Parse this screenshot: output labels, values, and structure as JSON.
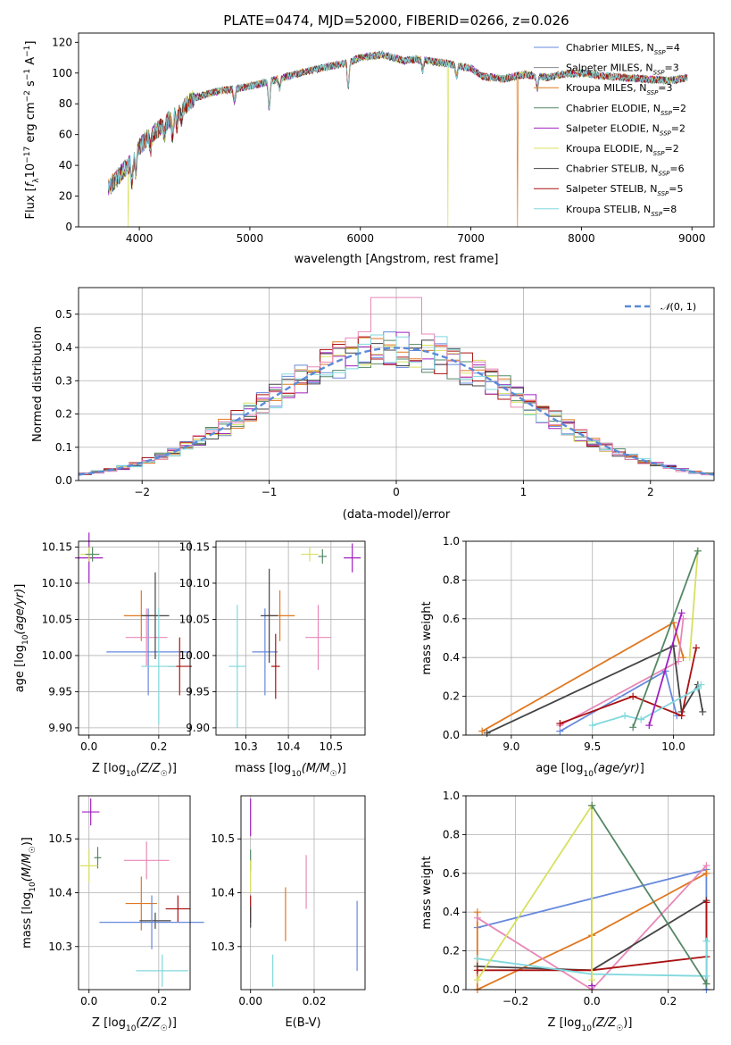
{
  "colors": {
    "chabrier_miles": "#6688dd",
    "salpeter_miles": "#888888",
    "kroupa_miles": "#e07820",
    "chabrier_elodie": "#558866",
    "salpeter_elodie": "#a020c0",
    "kroupa_elodie": "#d8e060",
    "chabrier_stelib": "#444444",
    "salpeter_stelib": "#aa1111",
    "kroupa_stelib": "#80d8dd",
    "pink": "#e888b8",
    "gaussian": "#5b8ad8"
  },
  "chart_data": [
    {
      "id": "spectrum",
      "type": "line",
      "title": "PLATE=0474, MJD=52000, FIBERID=0266, z=0.026",
      "xlabel": "wavelength [Angstrom, rest frame]",
      "ylabel": "Flux [fλ10⁻¹⁷ erg cm⁻² s⁻¹ A⁻¹]",
      "xlim": [
        3450,
        9200
      ],
      "ylim": [
        0,
        126
      ],
      "xticks": [
        4000,
        5000,
        6000,
        7000,
        8000,
        9000
      ],
      "yticks": [
        0,
        20,
        40,
        60,
        80,
        100,
        120
      ],
      "legend_position": "top-right",
      "legend": [
        "Chabrier MILES, N_SSP=4",
        "Salpeter MILES, N_SSP=3",
        "Kroupa MILES, N_SSP=3",
        "Chabrier ELODIE, N_SSP=2",
        "Salpeter ELODIE, N_SSP=2",
        "Kroupa ELODIE, N_SSP=2",
        "Chabrier STELIB, N_SSP=6",
        "Salpeter STELIB, N_SSP=5",
        "Kroupa STELIB, N_SSP=8"
      ],
      "legend_labels": [
        {
          "model": "Chabrier MILES, N",
          "n": "=4"
        },
        {
          "model": "Salpeter MILES, N",
          "n": "=3"
        },
        {
          "model": "Kroupa MILES, N",
          "n": "=3"
        },
        {
          "model": "Chabrier ELODIE, N",
          "n": "=2"
        },
        {
          "model": "Salpeter ELODIE, N",
          "n": "=2"
        },
        {
          "model": "Kroupa ELODIE, N",
          "n": "=2"
        },
        {
          "model": "Chabrier STELIB, N",
          "n": "=6"
        },
        {
          "model": "Salpeter STELIB, N",
          "n": "=5"
        },
        {
          "model": "Kroupa STELIB, N",
          "n": "=8"
        }
      ],
      "legend_subscript": "SSP",
      "continuum": {
        "x": [
          3720,
          3800,
          3900,
          4000,
          4100,
          4200,
          4300,
          4400,
          4500,
          4700,
          4900,
          5100,
          5300,
          5500,
          5700,
          5900,
          6000,
          6100,
          6200,
          6300,
          6400,
          6500,
          6600,
          6800,
          7000,
          7100,
          7200,
          7300,
          7400,
          7500,
          7600,
          7700,
          7800,
          8000,
          8200,
          8400,
          8600,
          8800,
          8960
        ],
        "y": [
          25,
          32,
          40,
          52,
          60,
          65,
          72,
          78,
          84,
          88,
          90,
          93,
          97,
          101,
          104,
          107,
          110,
          111,
          112,
          110,
          108,
          109,
          108,
          106,
          103,
          98,
          97,
          96,
          98,
          99,
          98,
          97,
          99,
          100,
          98,
          97,
          96,
          95,
          97
        ]
      },
      "dropouts": [
        {
          "series": "kroupa_elodie",
          "x": 3900
        },
        {
          "series": "kroupa_elodie",
          "x": 6790
        },
        {
          "series": "kroupa_miles",
          "x": 7420
        }
      ]
    },
    {
      "id": "residuals",
      "type": "histogram",
      "xlabel": "(data-model)/error",
      "ylabel": "Normed distribution",
      "xlim": [
        -2.5,
        2.5
      ],
      "ylim": [
        0,
        0.58
      ],
      "xticks": [
        -2,
        -1,
        0,
        1,
        2
      ],
      "yticks": [
        0.0,
        0.1,
        0.2,
        0.3,
        0.4,
        0.5
      ],
      "legend": [
        "N(0,1)"
      ],
      "legend_position": "top-right",
      "bins": 50
    },
    {
      "id": "age_vs_Z",
      "type": "scatter",
      "xlabel": "Z [log10(Z/Z☉)]",
      "ylabel": "age  [log10(age/yr)]",
      "xlim": [
        -0.03,
        0.29
      ],
      "ylim": [
        9.89,
        10.158
      ],
      "xticks": [
        0.0,
        0.2
      ],
      "yticks": [
        9.9,
        9.95,
        10.0,
        10.05,
        10.1,
        10.15
      ],
      "points": [
        {
          "series": "chabrier_miles",
          "x": 0.17,
          "y": 10.005,
          "xerr": 0.12,
          "yerr": 0.06
        },
        {
          "series": "kroupa_miles",
          "x": 0.15,
          "y": 10.055,
          "xerr": 0.05,
          "yerr": 0.035
        },
        {
          "series": "pink",
          "x": 0.165,
          "y": 10.025,
          "xerr": 0.06,
          "yerr": 0.04
        },
        {
          "series": "chabrier_stelib",
          "x": 0.19,
          "y": 10.055,
          "xerr": 0.04,
          "yerr": 0.06
        },
        {
          "series": "salpeter_stelib",
          "x": 0.26,
          "y": 9.985,
          "xerr": 0.035,
          "yerr": 0.04
        },
        {
          "series": "kroupa_stelib",
          "x": 0.2,
          "y": 9.985,
          "xerr": 0.05,
          "yerr": 0.08
        },
        {
          "series": "salpeter_elodie",
          "x": 0.0,
          "y": 10.135,
          "xerr": 0.04,
          "yerr": 0.035
        },
        {
          "series": "kroupa_elodie",
          "x": 0.0,
          "y": 10.14,
          "xerr": 0.025,
          "yerr": 0.01
        },
        {
          "series": "chabrier_elodie",
          "x": 0.01,
          "y": 10.14,
          "xerr": 0.02,
          "yerr": 0.01
        }
      ]
    },
    {
      "id": "age_vs_mass",
      "type": "scatter",
      "xlabel": "mass [log10(M/M☉)]",
      "xlim": [
        10.23,
        10.58
      ],
      "ylim": [
        9.89,
        10.158
      ],
      "xticks": [
        10.3,
        10.4,
        10.5
      ],
      "yticks": [
        9.9,
        9.95,
        10.0,
        10.05,
        10.1,
        10.15
      ],
      "points": [
        {
          "series": "chabrier_miles",
          "x": 10.345,
          "y": 10.005,
          "xerr": 0.03,
          "yerr": 0.06
        },
        {
          "series": "kroupa_miles",
          "x": 10.38,
          "y": 10.055,
          "xerr": 0.035,
          "yerr": 0.035
        },
        {
          "series": "chabrier_stelib",
          "x": 10.355,
          "y": 10.055,
          "xerr": 0.02,
          "yerr": 0.065
        },
        {
          "series": "salpeter_stelib",
          "x": 10.37,
          "y": 9.985,
          "xerr": 0.01,
          "yerr": 0.045
        },
        {
          "series": "pink",
          "x": 10.47,
          "y": 10.025,
          "xerr": 0.03,
          "yerr": 0.045
        },
        {
          "series": "kroupa_stelib",
          "x": 10.28,
          "y": 9.985,
          "xerr": 0.02,
          "yerr": 0.085
        },
        {
          "series": "salpeter_elodie",
          "x": 10.55,
          "y": 10.135,
          "xerr": 0.02,
          "yerr": 0.02
        },
        {
          "series": "kroupa_elodie",
          "x": 10.45,
          "y": 10.14,
          "xerr": 0.02,
          "yerr": 0.01
        },
        {
          "series": "chabrier_elodie",
          "x": 10.48,
          "y": 10.137,
          "xerr": 0.01,
          "yerr": 0.01
        }
      ]
    },
    {
      "id": "weight_vs_age",
      "type": "line",
      "xlabel": "age  [log10(age/yr)]",
      "ylabel": "mass weight",
      "xlim": [
        8.72,
        10.25
      ],
      "ylim": [
        0,
        1.0
      ],
      "xticks": [
        9.0,
        9.5,
        10.0
      ],
      "yticks": [
        0.0,
        0.2,
        0.4,
        0.6,
        0.8,
        1.0
      ],
      "series": [
        {
          "series": "chabrier_miles",
          "x": [
            9.3,
            9.95,
            10.02
          ],
          "y": [
            0.02,
            0.33,
            0.1
          ]
        },
        {
          "series": "kroupa_miles",
          "x": [
            8.82,
            10.0,
            10.06
          ],
          "y": [
            0.02,
            0.58,
            0.4
          ]
        },
        {
          "series": "pink",
          "x": [
            9.3,
            10.03,
            10.06
          ],
          "y": [
            0.05,
            0.38,
            0.6
          ]
        },
        {
          "series": "chabrier_stelib",
          "x": [
            8.85,
            10.0,
            10.05,
            10.15,
            10.18
          ],
          "y": [
            0.01,
            0.46,
            0.12,
            0.26,
            0.12
          ]
        },
        {
          "series": "salpeter_stelib",
          "x": [
            9.3,
            9.75,
            10.05,
            10.14
          ],
          "y": [
            0.06,
            0.2,
            0.1,
            0.45
          ]
        },
        {
          "series": "kroupa_stelib",
          "x": [
            9.5,
            9.7,
            9.8,
            10.15,
            10.17
          ],
          "y": [
            0.05,
            0.1,
            0.08,
            0.24,
            0.26
          ]
        },
        {
          "series": "salpeter_elodie",
          "x": [
            9.85,
            10.05
          ],
          "y": [
            0.05,
            0.63
          ]
        },
        {
          "series": "kroupa_elodie",
          "x": [
            10.1,
            10.15
          ],
          "y": [
            0.4,
            0.95
          ]
        },
        {
          "series": "chabrier_elodie",
          "x": [
            9.75,
            10.15
          ],
          "y": [
            0.04,
            0.95
          ]
        }
      ]
    },
    {
      "id": "mass_vs_Z",
      "type": "scatter",
      "xlabel": "Z [log10(Z/Z☉)]",
      "ylabel": "mass [log10(M/M☉)]",
      "xlim": [
        -0.03,
        0.29
      ],
      "ylim": [
        10.22,
        10.58
      ],
      "xticks": [
        0.0,
        0.2
      ],
      "yticks": [
        10.3,
        10.4,
        10.5
      ],
      "points": [
        {
          "series": "salpeter_elodie",
          "x": 0.005,
          "y": 10.55,
          "xerr": 0.025,
          "yerr": 0.025
        },
        {
          "series": "chabrier_elodie",
          "x": 0.025,
          "y": 10.465,
          "xerr": 0.01,
          "yerr": 0.02
        },
        {
          "series": "kroupa_elodie",
          "x": 0.0,
          "y": 10.45,
          "xerr": 0.025,
          "yerr": 0.03
        },
        {
          "series": "pink",
          "x": 0.165,
          "y": 10.46,
          "xerr": 0.065,
          "yerr": 0.035
        },
        {
          "series": "kroupa_miles",
          "x": 0.15,
          "y": 10.38,
          "xerr": 0.045,
          "yerr": 0.05
        },
        {
          "series": "salpeter_stelib",
          "x": 0.255,
          "y": 10.37,
          "xerr": 0.035,
          "yerr": 0.025
        },
        {
          "series": "chabrier_stelib",
          "x": 0.19,
          "y": 10.348,
          "xerr": 0.045,
          "yerr": 0.015
        },
        {
          "series": "chabrier_miles",
          "x": 0.18,
          "y": 10.345,
          "xerr": 0.15,
          "yerr": 0.05
        },
        {
          "series": "kroupa_stelib",
          "x": 0.21,
          "y": 10.255,
          "xerr": 0.075,
          "yerr": 0.03
        }
      ]
    },
    {
      "id": "mass_vs_ebv",
      "type": "scatter",
      "xlabel": "E(B-V)",
      "xlim": [
        -0.003,
        0.036
      ],
      "ylim": [
        10.22,
        10.58
      ],
      "xticks": [
        0.0,
        0.02
      ],
      "yticks": [
        10.3,
        10.4,
        10.5
      ],
      "points": [
        {
          "series": "salpeter_elodie",
          "x": 0.0,
          "y": 10.54,
          "xerr": 0,
          "yerr": 0.035
        },
        {
          "series": "chabrier_elodie",
          "x": 0.0,
          "y": 10.46,
          "xerr": 0,
          "yerr": 0.02
        },
        {
          "series": "kroupa_elodie",
          "x": 0.0,
          "y": 10.43,
          "xerr": 0,
          "yerr": 0.03
        },
        {
          "series": "salpeter_stelib",
          "x": 0.0,
          "y": 10.37,
          "xerr": 0,
          "yerr": 0.025
        },
        {
          "series": "chabrier_stelib",
          "x": 0.0,
          "y": 10.355,
          "xerr": 0,
          "yerr": 0.02
        },
        {
          "series": "kroupa_miles",
          "x": 0.011,
          "y": 10.36,
          "xerr": 0,
          "yerr": 0.05
        },
        {
          "series": "pink",
          "x": 0.0175,
          "y": 10.42,
          "xerr": 0,
          "yerr": 0.05
        },
        {
          "series": "kroupa_stelib",
          "x": 0.007,
          "y": 10.255,
          "xerr": 0,
          "yerr": 0.03
        },
        {
          "series": "chabrier_miles",
          "x": 0.0335,
          "y": 10.32,
          "xerr": 0,
          "yerr": 0.065
        }
      ]
    },
    {
      "id": "weight_vs_Z",
      "type": "line",
      "xlabel": "Z [log10(Z/Z☉)]",
      "ylabel": "mass weight",
      "xlim": [
        -0.33,
        0.32
      ],
      "ylim": [
        0,
        1.0
      ],
      "xticks": [
        -0.2,
        0.0,
        0.2
      ],
      "yticks": [
        0.0,
        0.2,
        0.4,
        0.6,
        0.8,
        1.0
      ],
      "series": [
        {
          "series": "chabrier_miles",
          "x": [
            -0.3,
            0.3,
            0.3
          ],
          "y": [
            0.32,
            0.62,
            0.0
          ]
        },
        {
          "series": "kroupa_miles",
          "x": [
            -0.3,
            -0.3,
            0.0,
            0.3
          ],
          "y": [
            0.4,
            0.0,
            0.28,
            0.6
          ]
        },
        {
          "series": "pink",
          "x": [
            -0.3,
            0.0,
            0.3
          ],
          "y": [
            0.37,
            0.0,
            0.64
          ]
        },
        {
          "series": "chabrier_stelib",
          "x": [
            -0.3,
            0.0,
            0.3,
            0.3
          ],
          "y": [
            0.12,
            0.1,
            0.46,
            0.03
          ]
        },
        {
          "series": "salpeter_stelib",
          "x": [
            -0.3,
            0.0,
            0.3,
            0.3
          ],
          "y": [
            0.1,
            0.1,
            0.17,
            0.45
          ]
        },
        {
          "series": "kroupa_stelib",
          "x": [
            -0.3,
            0.0,
            0.3,
            0.3
          ],
          "y": [
            0.16,
            0.08,
            0.07,
            0.25
          ]
        },
        {
          "series": "salpeter_elodie",
          "x": [
            0.0,
            0.0
          ],
          "y": [
            0.95,
            0.02
          ]
        },
        {
          "series": "kroupa_elodie",
          "x": [
            -0.3,
            0.0,
            0.0
          ],
          "y": [
            0.05,
            0.95,
            0.05
          ]
        },
        {
          "series": "chabrier_elodie",
          "x": [
            0.0,
            0.3
          ],
          "y": [
            0.95,
            0.03
          ]
        }
      ]
    }
  ]
}
